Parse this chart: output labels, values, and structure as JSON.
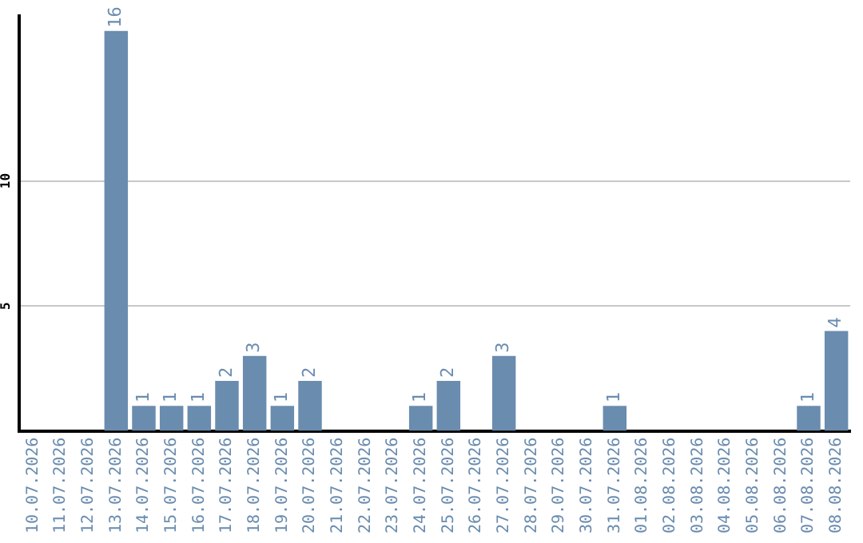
{
  "chart_data": {
    "type": "bar",
    "categories": [
      "10.07.2026",
      "11.07.2026",
      "12.07.2026",
      "13.07.2026",
      "14.07.2026",
      "15.07.2026",
      "16.07.2026",
      "17.07.2026",
      "18.07.2026",
      "19.07.2026",
      "20.07.2026",
      "21.07.2026",
      "22.07.2026",
      "23.07.2026",
      "24.07.2026",
      "25.07.2026",
      "26.07.2026",
      "27.07.2026",
      "28.07.2026",
      "29.07.2026",
      "30.07.2026",
      "31.07.2026",
      "01.08.2026",
      "02.08.2026",
      "03.08.2026",
      "04.08.2026",
      "05.08.2026",
      "06.08.2026",
      "07.08.2026",
      "08.08.2026"
    ],
    "values": [
      0,
      0,
      0,
      16,
      1,
      1,
      1,
      2,
      3,
      1,
      2,
      0,
      0,
      0,
      1,
      2,
      0,
      3,
      0,
      0,
      0,
      1,
      0,
      0,
      0,
      0,
      0,
      0,
      1,
      4
    ],
    "value_labels": [
      null,
      null,
      null,
      "16",
      "1",
      "1",
      "1",
      "2",
      "3",
      "1",
      "2",
      null,
      null,
      null,
      "1",
      "2",
      null,
      "3",
      null,
      null,
      null,
      "1",
      null,
      null,
      null,
      null,
      null,
      null,
      "1",
      "4"
    ],
    "color": "#6a8caf",
    "ylim": [
      0,
      16.6
    ],
    "yticks": [
      5,
      10
    ],
    "grid": "y",
    "legend": false
  }
}
